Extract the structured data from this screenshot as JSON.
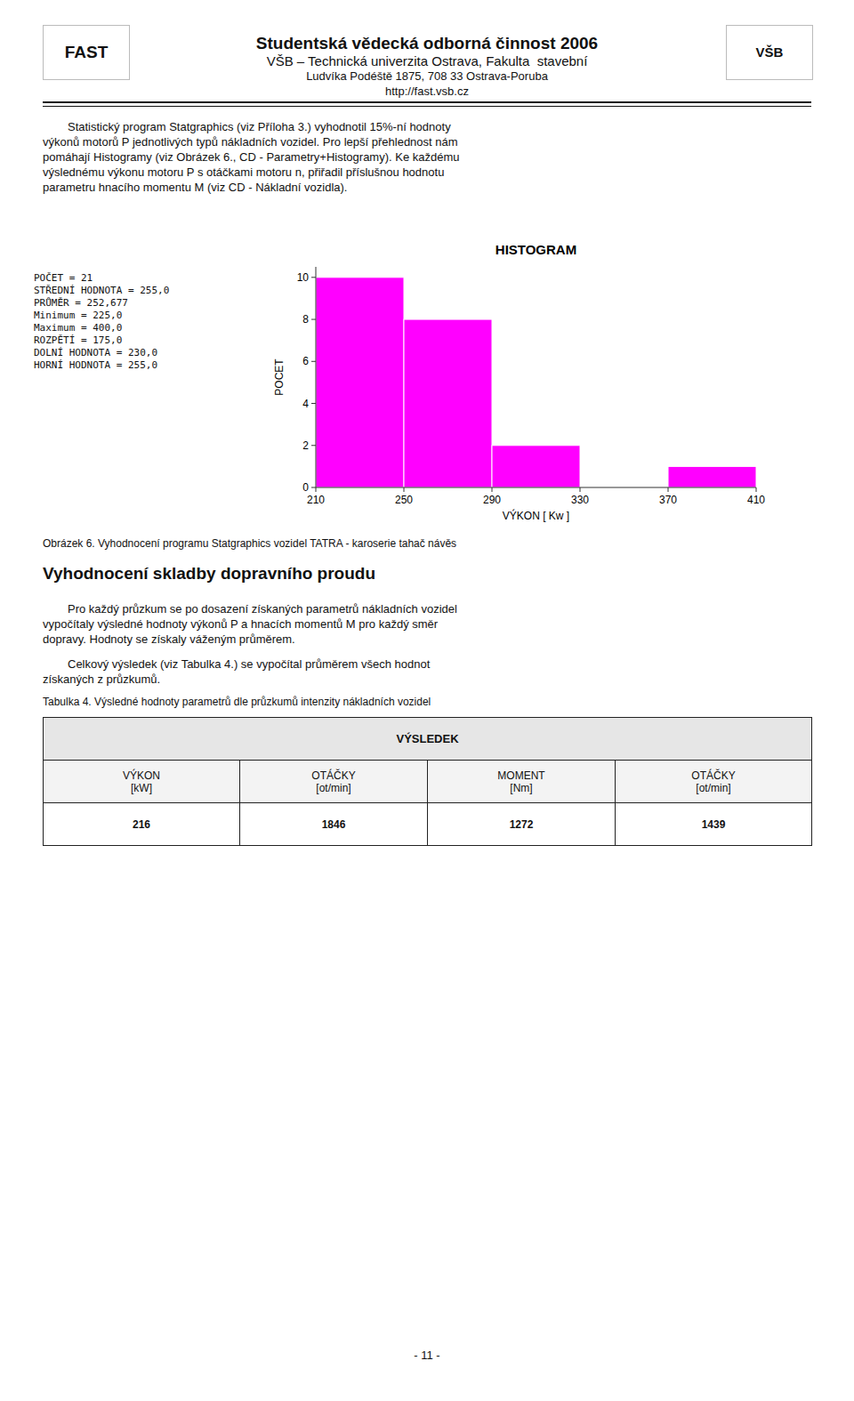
{
  "chart_data": {
    "type": "histogram",
    "title": "HISTOGRAM",
    "xlabel": "VÝKON [ Kw ]",
    "ylabel": "POCET",
    "bins": [
      210,
      250,
      290,
      330,
      370,
      410
    ],
    "values": [
      10,
      8,
      2,
      0,
      1
    ],
    "color": "#FF00FF",
    "xlim": [
      210,
      410
    ],
    "ylim": [
      0,
      10.5
    ],
    "xticks": [
      210,
      250,
      290,
      330,
      370,
      410
    ],
    "yticks": [
      0,
      2,
      4,
      6,
      8,
      10
    ],
    "grid": false,
    "annotations": [
      "POČET = 21",
      "STŘEDNÍ HODNOTA = 255,0",
      "PRŮMĚR = 252,677",
      "Minimum = 225,0",
      "Maximum = 400,0",
      "ROZPĚTÍ = 175,0",
      "DOLNÍ HODNOTA = 230,0",
      "HORNÍ HODNOTA = 255,0"
    ]
  },
  "page": {
    "header": [
      "Studentská vědecká odborná činnost 2006",
      "VŠB – Technická univerzita Ostrava, Fakulta  stavební",
      "Ludvíka Podéště 1875, 708 33 Ostrava-Poruba",
      "http://fast.vsb.cz"
    ],
    "logos": [
      "FAST",
      "VŠB"
    ],
    "body_1": [
      "Statistický program Statgraphics (viz Příloha 3.) vyhodnotil 15%-ní hodnoty",
      "výkonů motorů P jednotlivých typů nákladních vozidel. Pro lepší přehlednost nám",
      "pomáhají Histogramy (viz Obrázek 6., CD - Parametry+Histogramy). Ke každému",
      "výslednému výkonu motoru P s otáčkami motoru n, přiřadil příslušnou hodnotu",
      "parametru hnacího momentu M (viz CD - Nákladní vozidla)."
    ],
    "figure_caption": "Obrázek 6. Vyhodnocení programu Statgraphics vozidel TATRA - karoserie tahač návěs",
    "section_heading": "Vyhodnocení skladby dopravního proudu",
    "body_2": [
      "Pro každý průzkum se po dosazení získaných parametrů nákladních vozidel",
      "vypočítaly výsledné hodnoty výkonů P a hnacích momentů M pro každý směr",
      "dopravy. Hodnoty se získaly váženým průměrem."
    ],
    "body_3": [
      "Celkový výsledek (viz Tabulka 4.) se vypočítal průměrem všech hodnot",
      "získaných z průzkumů."
    ],
    "table": {
      "caption": "Tabulka 4. Výsledné hodnoty parametrů dle průzkumů intenzity nákladních vozidel",
      "title": "VÝSLEDEK",
      "columns": [
        "VÝKON\n[kW]",
        "OTÁČKY\n[ot/min]",
        "MOMENT\n[Nm]",
        "OTÁČKY\n[ot/min]"
      ],
      "values": [
        216,
        1846,
        1272,
        1439
      ]
    },
    "page_number": "- 11 -"
  }
}
